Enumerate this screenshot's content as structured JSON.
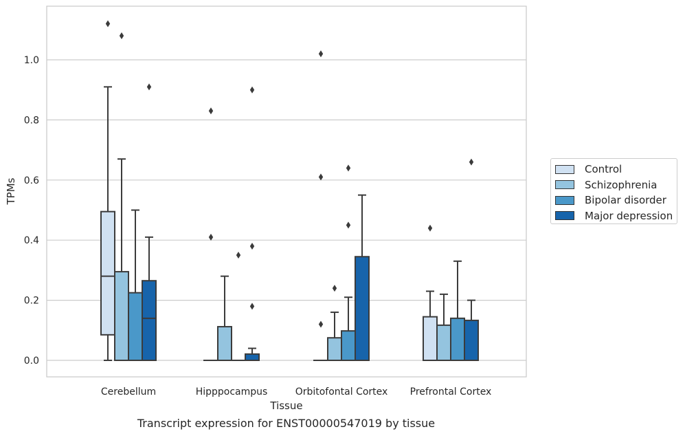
{
  "chart_data": {
    "type": "box",
    "title": "Transcript expression for ENST00000547019 by tissue",
    "xlabel": "Tissue",
    "ylabel": "TPMs",
    "ylim": [
      -0.055,
      1.175
    ],
    "yticks": [
      "0.0",
      "0.2",
      "0.4",
      "0.6",
      "0.8",
      "1.0"
    ],
    "grid": "horizontal",
    "legend_position": "right",
    "categories": [
      "Cerebellum",
      "Hipppocampus",
      "Orbitofontal Cortex",
      "Prefrontal Cortex"
    ],
    "series": [
      {
        "name": "Control",
        "color": "#d0e1f2",
        "boxes": [
          {
            "whislo": 0.0,
            "q1": 0.085,
            "med": 0.28,
            "q3": 0.495,
            "whishi": 0.91,
            "fliers": [
              1.12
            ]
          },
          {
            "whislo": 0.0,
            "q1": 0.0,
            "med": 0.0,
            "q3": 0.0,
            "whishi": 0.0,
            "fliers": [
              0.41,
              0.83
            ]
          },
          {
            "whislo": 0.0,
            "q1": 0.0,
            "med": 0.0,
            "q3": 0.0,
            "whishi": 0.0,
            "fliers": [
              0.12,
              0.61,
              1.02
            ]
          },
          {
            "whislo": 0.0,
            "q1": 0.0,
            "med": 0.0,
            "q3": 0.145,
            "whishi": 0.23,
            "fliers": [
              0.44
            ]
          }
        ]
      },
      {
        "name": "Schizophrenia",
        "color": "#94c4df",
        "boxes": [
          {
            "whislo": 0.0,
            "q1": 0.0,
            "med": 0.0,
            "q3": 0.295,
            "whishi": 0.67,
            "fliers": [
              1.08
            ]
          },
          {
            "whislo": 0.0,
            "q1": 0.0,
            "med": 0.0,
            "q3": 0.112,
            "whishi": 0.28,
            "fliers": []
          },
          {
            "whislo": 0.0,
            "q1": 0.0,
            "med": 0.0,
            "q3": 0.075,
            "whishi": 0.16,
            "fliers": [
              0.24
            ]
          },
          {
            "whislo": 0.0,
            "q1": 0.0,
            "med": 0.0,
            "q3": 0.117,
            "whishi": 0.22,
            "fliers": []
          }
        ]
      },
      {
        "name": "Bipolar disorder",
        "color": "#4a98c9",
        "boxes": [
          {
            "whislo": 0.0,
            "q1": 0.0,
            "med": 0.0,
            "q3": 0.225,
            "whishi": 0.5,
            "fliers": []
          },
          {
            "whislo": 0.0,
            "q1": 0.0,
            "med": 0.0,
            "q3": 0.0,
            "whishi": 0.0,
            "fliers": [
              0.35
            ]
          },
          {
            "whislo": 0.0,
            "q1": 0.0,
            "med": 0.0,
            "q3": 0.098,
            "whishi": 0.21,
            "fliers": [
              0.45,
              0.64
            ]
          },
          {
            "whislo": 0.0,
            "q1": 0.0,
            "med": 0.0,
            "q3": 0.14,
            "whishi": 0.33,
            "fliers": []
          }
        ]
      },
      {
        "name": "Major depression",
        "color": "#1764ab",
        "boxes": [
          {
            "whislo": 0.0,
            "q1": 0.0,
            "med": 0.14,
            "q3": 0.265,
            "whishi": 0.41,
            "fliers": [
              0.91
            ]
          },
          {
            "whislo": 0.0,
            "q1": 0.0,
            "med": 0.0,
            "q3": 0.021,
            "whishi": 0.04,
            "fliers": [
              0.18,
              0.38,
              0.9
            ]
          },
          {
            "whislo": 0.0,
            "q1": 0.0,
            "med": 0.0,
            "q3": 0.345,
            "whishi": 0.55,
            "fliers": []
          },
          {
            "whislo": 0.0,
            "q1": 0.0,
            "med": 0.0,
            "q3": 0.133,
            "whishi": 0.2,
            "fliers": [
              0.66
            ]
          }
        ]
      }
    ]
  }
}
